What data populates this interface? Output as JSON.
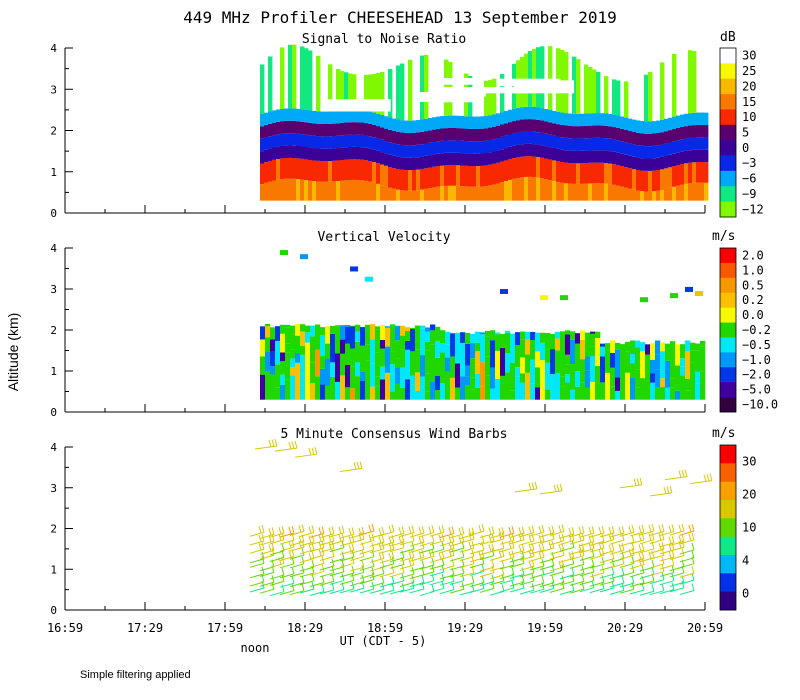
{
  "chart_data": {
    "type": "heatmap",
    "title": "449 MHz Profiler CHEESEHEAD 13 September 2019",
    "xlabel": "UT  (CDT - 5)",
    "ylabel": "Altitude (km)",
    "x_tick_labels": [
      "16:59",
      "17:29",
      "17:59",
      "18:29",
      "18:59",
      "19:29",
      "19:59",
      "20:29",
      "20:59"
    ],
    "x_range_minutes_ut": [
      1019,
      1259
    ],
    "noon_label": "noon",
    "footnote": "Simple filtering applied",
    "data_start_ut": "18:11",
    "panels": [
      {
        "id": "snr",
        "type": "heatmap",
        "title": "Signal to Noise Ratio",
        "units": "dB",
        "ylim": [
          0,
          4
        ],
        "y_ticks": [
          "0",
          "1",
          "2",
          "3",
          "4"
        ],
        "colorbar_labels": [
          "30",
          "25",
          "20",
          "15",
          "10",
          "5",
          "0",
          "−3",
          "−6",
          "−9",
          "−12"
        ],
        "colorbar_colors": [
          "#ffffff",
          "#f8f800",
          "#f8b800",
          "#f87800",
          "#f82800",
          "#580070",
          "#3a0098",
          "#0828e8",
          "#00a8f8",
          "#10e880",
          "#80f800"
        ],
        "layers_km": [
          {
            "bottom": 0.3,
            "top": 0.7,
            "value_db": 15
          },
          {
            "bottom": 0.7,
            "top": 1.2,
            "value_db": 10
          },
          {
            "bottom": 1.2,
            "top": 1.5,
            "value_db": 0
          },
          {
            "bottom": 1.5,
            "top": 1.8,
            "value_db": -3
          },
          {
            "bottom": 1.8,
            "top": 2.1,
            "value_db": 5
          },
          {
            "bottom": 2.1,
            "top": 2.4,
            "value_db": -6
          },
          {
            "bottom": 2.4,
            "top": 3.6,
            "value_db": -12
          }
        ]
      },
      {
        "id": "vv",
        "type": "heatmap",
        "title": "Vertical Velocity",
        "units": "m/s",
        "ylim": [
          0,
          4
        ],
        "y_ticks": [
          "0",
          "1",
          "2",
          "3",
          "4"
        ],
        "colorbar_labels": [
          "2.0",
          "1.0",
          "0.5",
          "0.2",
          "0.0",
          "−0.2",
          "−0.5",
          "−1.0",
          "−2.0",
          "−5.0",
          "−10.0"
        ],
        "colorbar_colors": [
          "#f80000",
          "#f85800",
          "#f89800",
          "#f8c000",
          "#f8f800",
          "#20d800",
          "#00e8f8",
          "#0098f8",
          "#0038e8",
          "#4000a0",
          "#300040"
        ],
        "dominant_value_ms": -0.2,
        "coverage_km": [
          0.3,
          2.1
        ]
      },
      {
        "id": "wind",
        "type": "scatter",
        "title": "5 Minute Consensus Wind Barbs",
        "units": "m/s",
        "ylim": [
          0,
          4
        ],
        "y_ticks": [
          "0",
          "1",
          "2",
          "3",
          "4"
        ],
        "colorbar_labels": [
          "30",
          "20",
          "10",
          "4",
          "0"
        ],
        "colorbar_colors": [
          "#f80000",
          "#f86000",
          "#f8a000",
          "#d8c800",
          "#60d800",
          "#10e888",
          "#00b8f8",
          "#0030e8",
          "#300080"
        ],
        "levels_km": [
          0.4,
          0.6,
          0.8,
          1.0,
          1.2,
          1.4,
          1.6,
          1.8
        ],
        "speed_ms_by_level": [
          8,
          10,
          12,
          13,
          15,
          16,
          17,
          18
        ]
      }
    ]
  }
}
